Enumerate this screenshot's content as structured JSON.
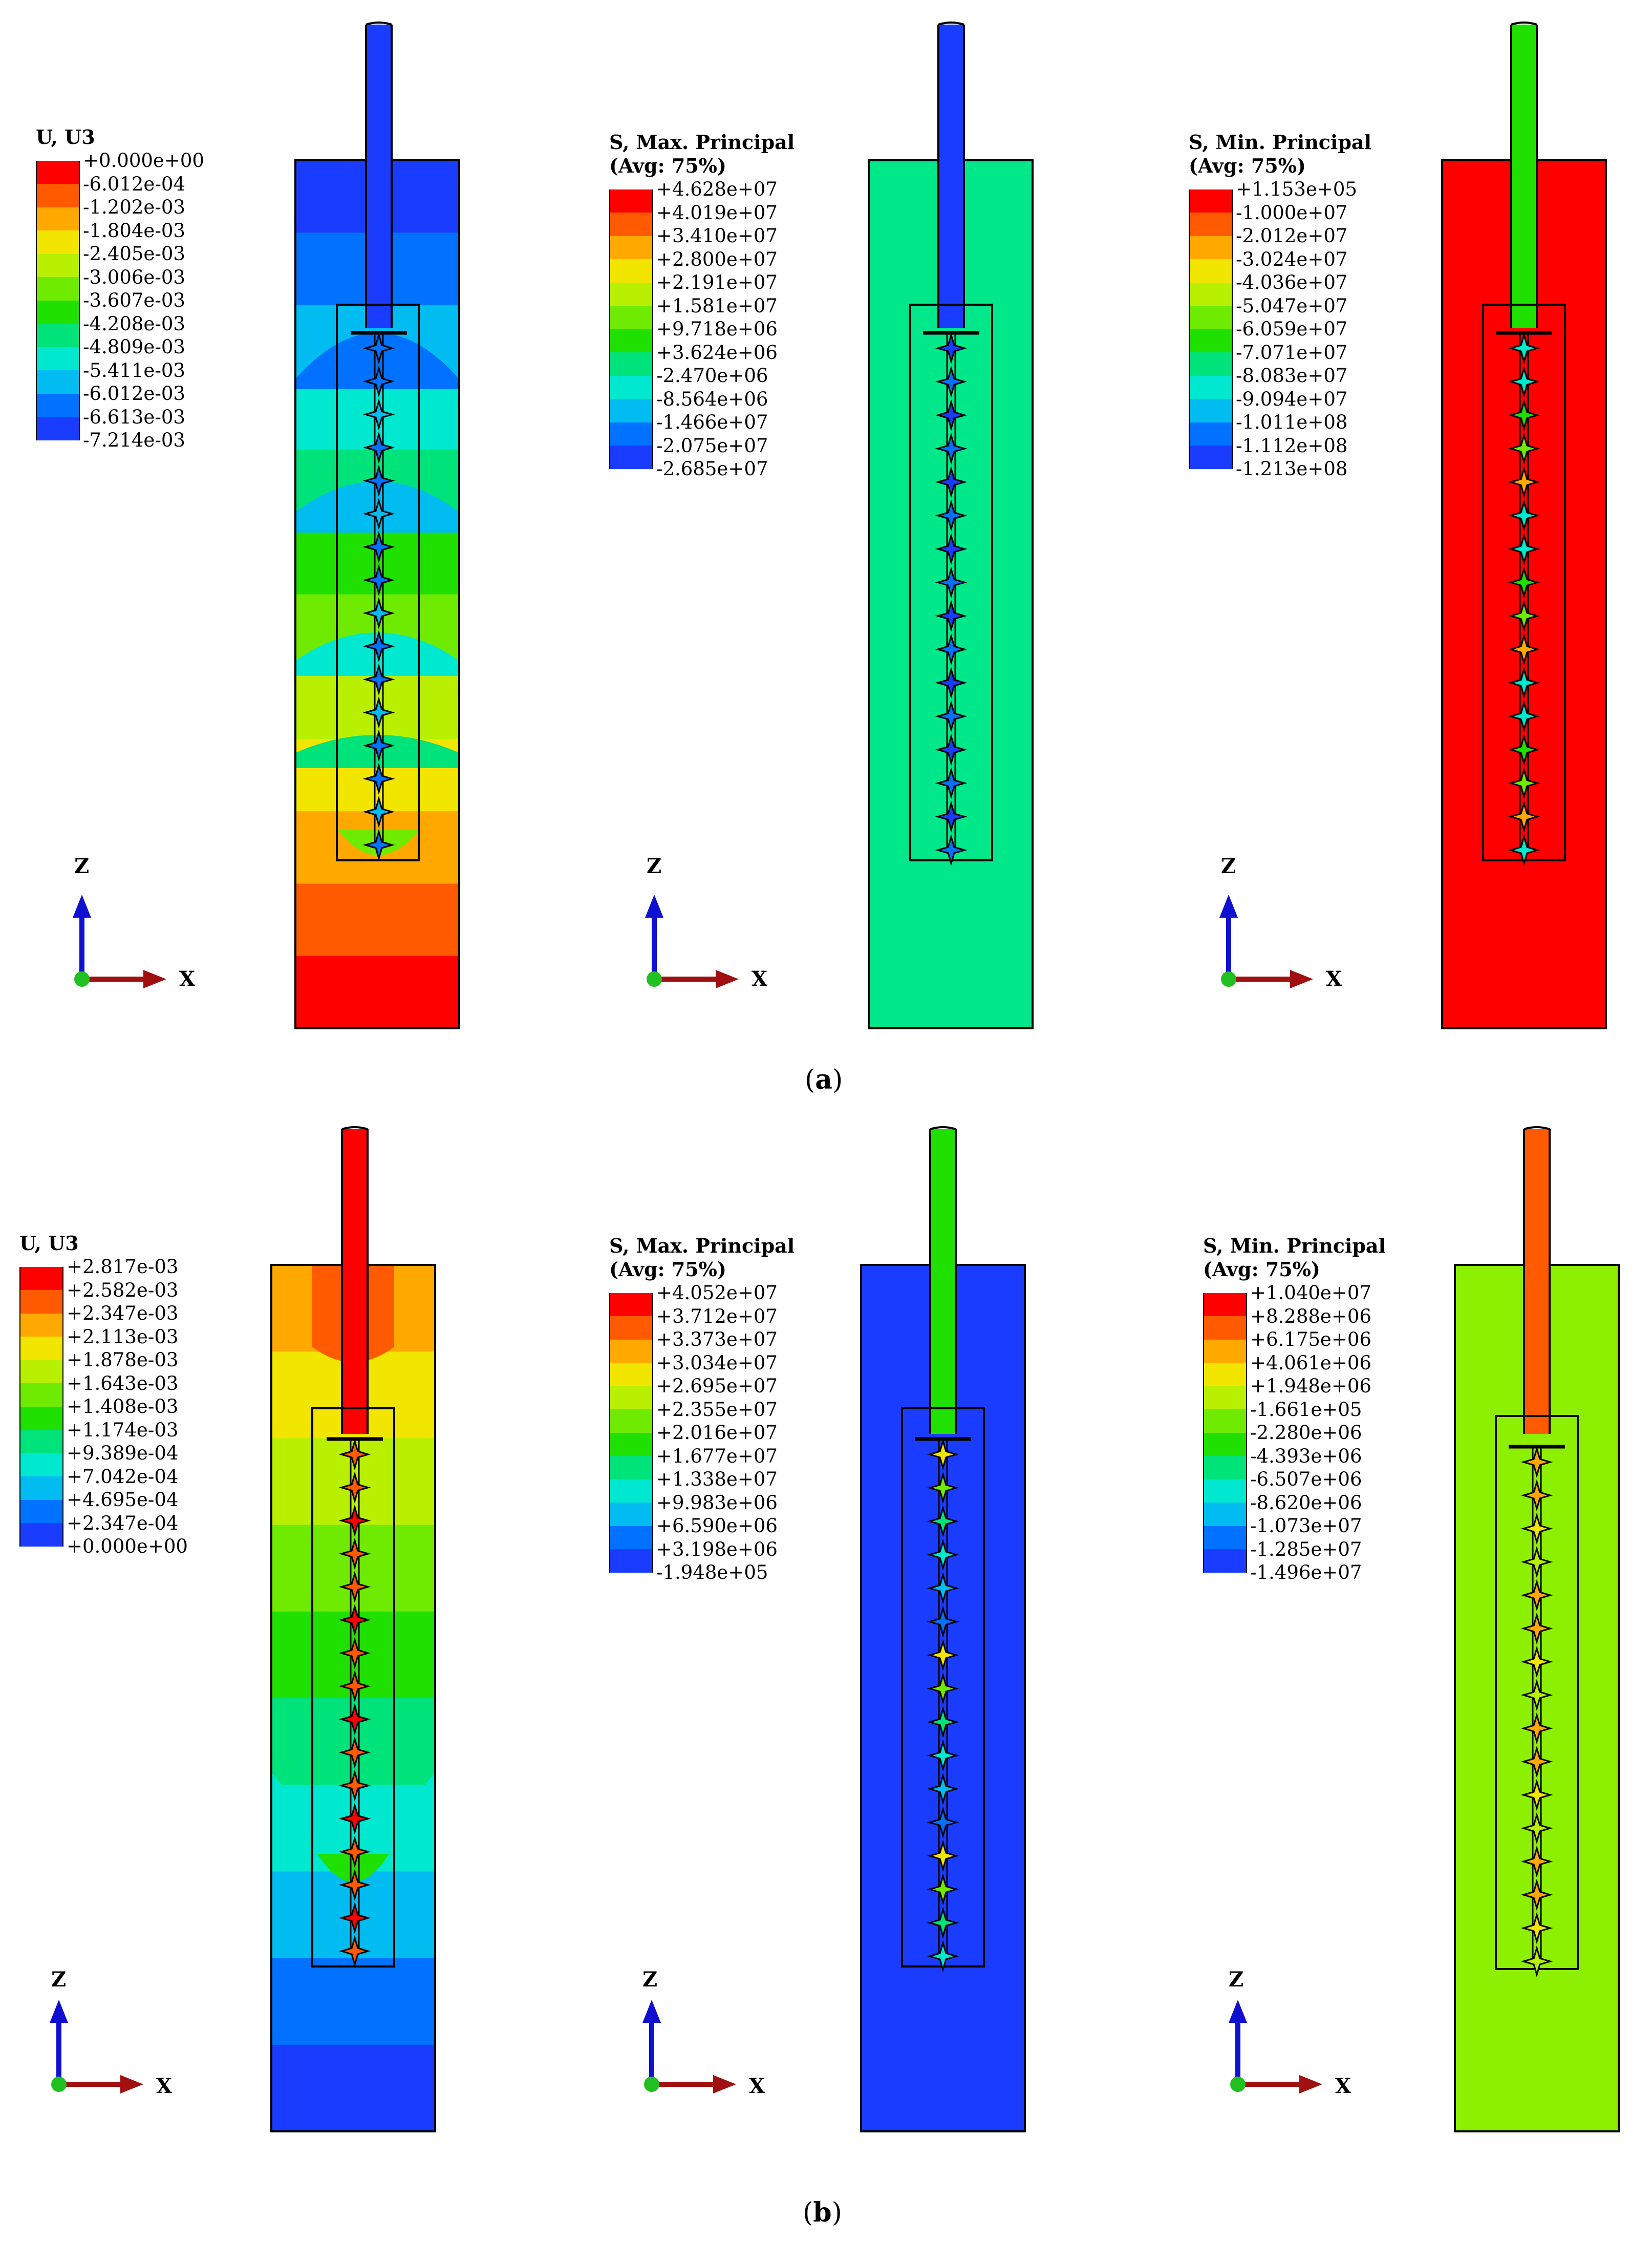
{
  "panels": [
    {
      "id": "a",
      "caption_label": "a",
      "plots": [
        {
          "legend_title": [
            "U, U3",
            ""
          ],
          "labels": [
            "+0.000e+00",
            "-6.012e-04",
            "-1.202e-03",
            "-1.804e-03",
            "-2.405e-03",
            "-3.006e-03",
            "-3.607e-03",
            "-4.208e-03",
            "-4.809e-03",
            "-5.411e-03",
            "-6.012e-03",
            "-6.613e-03",
            "-7.214e-03"
          ],
          "colors": [
            "#ff0000",
            "#ff5a00",
            "#ffa800",
            "#f2e500",
            "#b8f000",
            "#6eeb00",
            "#20e000",
            "#00e27a",
            "#00e8d0",
            "#00bcf0",
            "#0072ff",
            "#1a3cff"
          ]
        },
        {
          "legend_title": [
            "S, Max. Principal",
            "(Avg: 75%)"
          ],
          "labels": [
            "+4.628e+07",
            "+4.019e+07",
            "+3.410e+07",
            "+2.800e+07",
            "+2.191e+07",
            "+1.581e+07",
            "+9.718e+06",
            "+3.624e+06",
            "-2.470e+06",
            "-8.564e+06",
            "-1.466e+07",
            "-2.075e+07",
            "-2.685e+07"
          ],
          "colors": [
            "#ff0000",
            "#ff5a00",
            "#ffa800",
            "#f2e500",
            "#b8f000",
            "#6eeb00",
            "#20e000",
            "#00e27a",
            "#00e8d0",
            "#00bcf0",
            "#0072ff",
            "#1a3cff"
          ]
        },
        {
          "legend_title": [
            "S, Min. Principal",
            "(Avg: 75%)"
          ],
          "labels": [
            "+1.153e+05",
            "-1.000e+07",
            "-2.012e+07",
            "-3.024e+07",
            "-4.036e+07",
            "-5.047e+07",
            "-6.059e+07",
            "-7.071e+07",
            "-8.083e+07",
            "-9.094e+07",
            "-1.011e+08",
            "-1.112e+08",
            "-1.213e+08"
          ],
          "colors": [
            "#ff0000",
            "#ff5a00",
            "#ffa800",
            "#f2e500",
            "#b8f000",
            "#6eeb00",
            "#20e000",
            "#00e27a",
            "#00e8d0",
            "#00bcf0",
            "#0072ff",
            "#1a3cff"
          ]
        }
      ]
    },
    {
      "id": "b",
      "caption_label": "b",
      "plots": [
        {
          "legend_title": [
            "U, U3",
            ""
          ],
          "labels": [
            "+2.817e-03",
            "+2.582e-03",
            "+2.347e-03",
            "+2.113e-03",
            "+1.878e-03",
            "+1.643e-03",
            "+1.408e-03",
            "+1.174e-03",
            "+9.389e-04",
            "+7.042e-04",
            "+4.695e-04",
            "+2.347e-04",
            "+0.000e+00"
          ],
          "colors": [
            "#ff0000",
            "#ff5a00",
            "#ffa800",
            "#f2e500",
            "#b8f000",
            "#6eeb00",
            "#20e000",
            "#00e27a",
            "#00e8d0",
            "#00bcf0",
            "#0072ff",
            "#1a3cff"
          ]
        },
        {
          "legend_title": [
            "S, Max. Principal",
            "(Avg: 75%)"
          ],
          "labels": [
            "+4.052e+07",
            "+3.712e+07",
            "+3.373e+07",
            "+3.034e+07",
            "+2.695e+07",
            "+2.355e+07",
            "+2.016e+07",
            "+1.677e+07",
            "+1.338e+07",
            "+9.983e+06",
            "+6.590e+06",
            "+3.198e+06",
            "-1.948e+05"
          ],
          "colors": [
            "#ff0000",
            "#ff5a00",
            "#ffa800",
            "#f2e500",
            "#b8f000",
            "#6eeb00",
            "#20e000",
            "#00e27a",
            "#00e8d0",
            "#00bcf0",
            "#0072ff",
            "#1a3cff"
          ]
        },
        {
          "legend_title": [
            "S, Min. Principal",
            "(Avg: 75%)"
          ],
          "labels": [
            "+1.040e+07",
            "+8.288e+06",
            "+6.175e+06",
            "+4.061e+06",
            "+1.948e+06",
            "-1.661e+05",
            "-2.280e+06",
            "-4.393e+06",
            "-6.507e+06",
            "-8.620e+06",
            "-1.073e+07",
            "-1.285e+07",
            "-1.496e+07"
          ],
          "colors": [
            "#ff0000",
            "#ff5a00",
            "#ffa800",
            "#f2e500",
            "#b8f000",
            "#6eeb00",
            "#20e000",
            "#00e27a",
            "#00e8d0",
            "#00bcf0",
            "#0072ff",
            "#1a3cff"
          ]
        }
      ]
    }
  ],
  "axes": {
    "z_label": "Z",
    "x_label": "X"
  },
  "contour_fills": {
    "a_u3_bands_top_to_bottom": [
      "#1a3cff",
      "#0072ff",
      "#00bcf0",
      "#00e8d0",
      "#00e27a",
      "#20e000",
      "#6eeb00",
      "#b8f000",
      "#f2e500",
      "#ffa800",
      "#ff5a00",
      "#ff0000"
    ],
    "a_max_block": "#00e88a",
    "a_max_rod": "#1a3cff",
    "a_min_block": "#ff0000",
    "a_min_rod": "#20e000",
    "b_u3_bands_top_to_bottom": [
      "#ffa800",
      "#f2e500",
      "#b8f000",
      "#6eeb00",
      "#20e000",
      "#00e27a",
      "#00e8d0",
      "#00bcf0",
      "#0072ff",
      "#1a3cff"
    ],
    "b_u3_rod": "#ff0000",
    "b_max_block": "#1a3cff",
    "b_max_rod": "#20e000",
    "b_min_block": "#8cf000",
    "b_min_rod": "#ff5a00"
  }
}
